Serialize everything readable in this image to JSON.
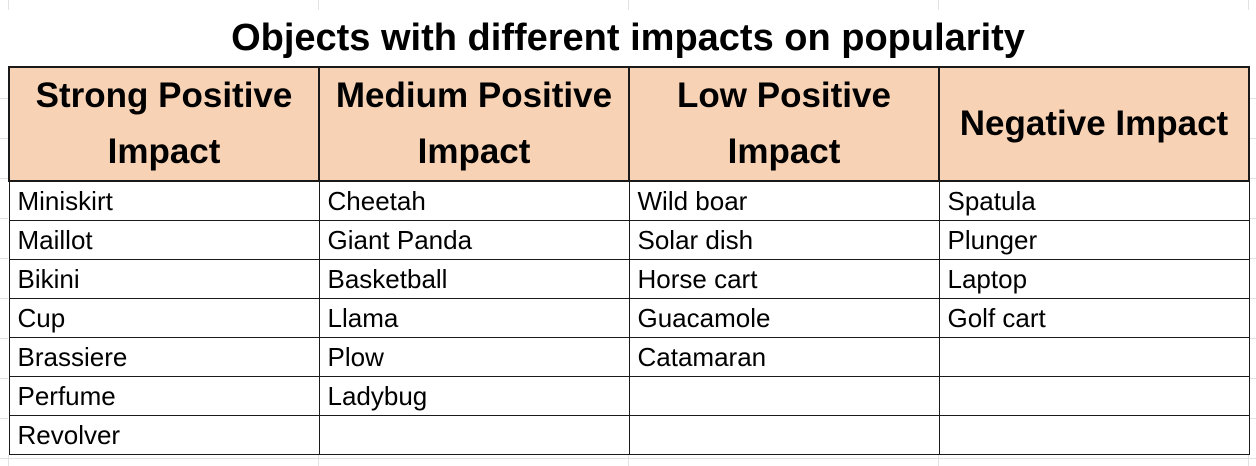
{
  "title": "Objects with different impacts on popularity",
  "headers": [
    "Strong Positive Impact",
    "Medium Positive Impact",
    "Low Positive Impact",
    "Negative Impact"
  ],
  "rows": [
    [
      "Miniskirt",
      "Cheetah",
      "Wild boar",
      "Spatula"
    ],
    [
      "Maillot",
      "Giant Panda",
      "Solar dish",
      "Plunger"
    ],
    [
      "Bikini",
      "Basketball",
      "Horse cart",
      "Laptop"
    ],
    [
      "Cup",
      "Llama",
      "Guacamole",
      "Golf cart"
    ],
    [
      "Brassiere",
      "Plow",
      "Catamaran",
      ""
    ],
    [
      "Perfume",
      "Ladybug",
      "",
      ""
    ],
    [
      "Revolver",
      "",
      "",
      ""
    ]
  ],
  "colors": {
    "header_fill": "#f8d2b4",
    "border": "#1a1a1a"
  }
}
